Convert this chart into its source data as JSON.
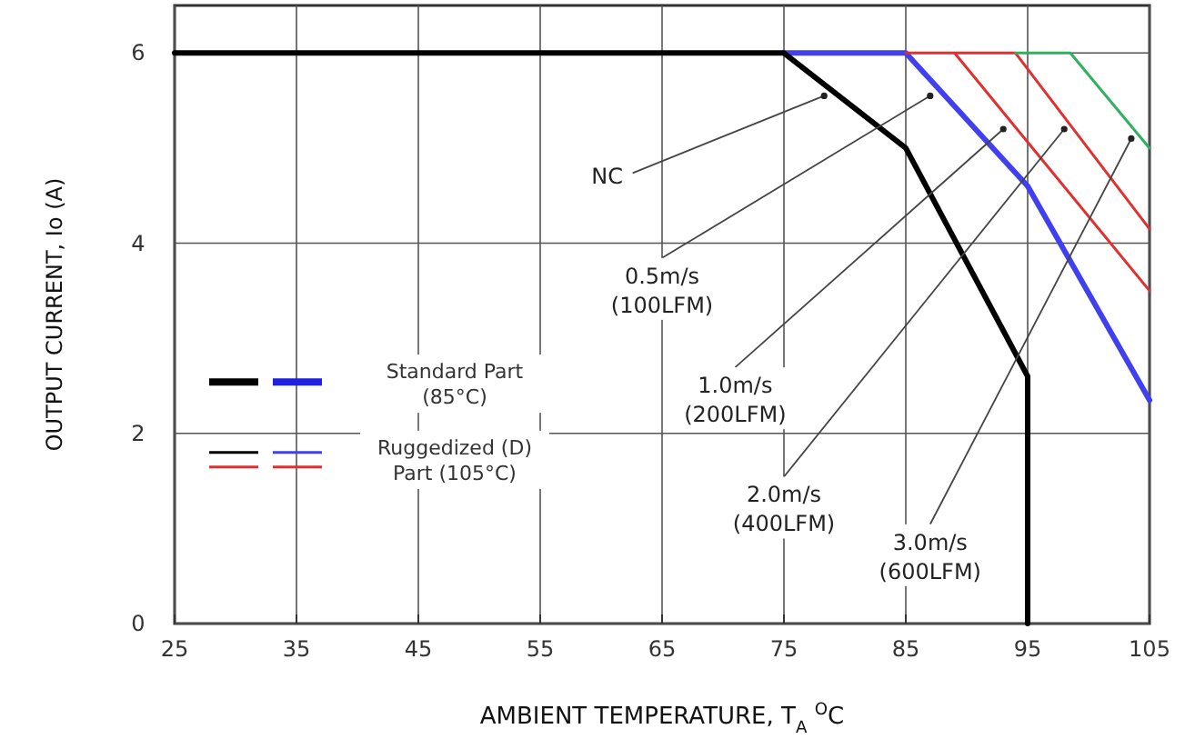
{
  "chart_data": {
    "type": "line",
    "xlabel": "AMBIENT TEMPERATURE, T$_{A}$ $^{O}$C",
    "ylabel": "OUTPUT CURRENT, Io (A)",
    "xlim": [
      25,
      105
    ],
    "xticks": [
      25,
      35,
      45,
      55,
      65,
      75,
      85,
      95,
      105
    ],
    "ylim": [
      0,
      6.5
    ],
    "yticks": [
      0,
      2,
      4,
      6
    ],
    "grid": true,
    "line_style": "solid",
    "series": [
      {
        "color": "#4040f0",
        "x": [
          75,
          85,
          95,
          105
        ],
        "values": [
          6,
          6,
          4.6,
          2.35
        ]
      },
      {
        "color": "#e03030",
        "x": [
          85,
          89,
          105
        ],
        "values": [
          6,
          6,
          3.5
        ]
      },
      {
        "color": "#e03030",
        "x": [
          89,
          94,
          105
        ],
        "values": [
          6,
          6,
          4.15
        ]
      },
      {
        "color": "#30b060",
        "x": [
          94,
          98.5,
          105
        ],
        "values": [
          6,
          6,
          5
        ]
      },
      {
        "color": "#000000",
        "x": [
          25,
          75,
          85,
          95,
          95
        ],
        "values": [
          6,
          6,
          5,
          2.6,
          0
        ]
      }
    ],
    "annotations": [
      {
        "text": "NC",
        "x": 78.3,
        "y": 5.55
      },
      {
        "text": "0.5m/s (100LFM)",
        "x": 87,
        "y": 5.55
      },
      {
        "text": "1.0m/s (200LFM)",
        "x": 93,
        "y": 5.2
      },
      {
        "text": "2.0m/s (400LFM)",
        "x": 98,
        "y": 5.2
      },
      {
        "text": "3.0m/s (600LFM)",
        "x": 103.5,
        "y": 5.1
      },
      "Standard Part (85°C)",
      "Ruggedized (D) Part (105°C)"
    ]
  }
}
